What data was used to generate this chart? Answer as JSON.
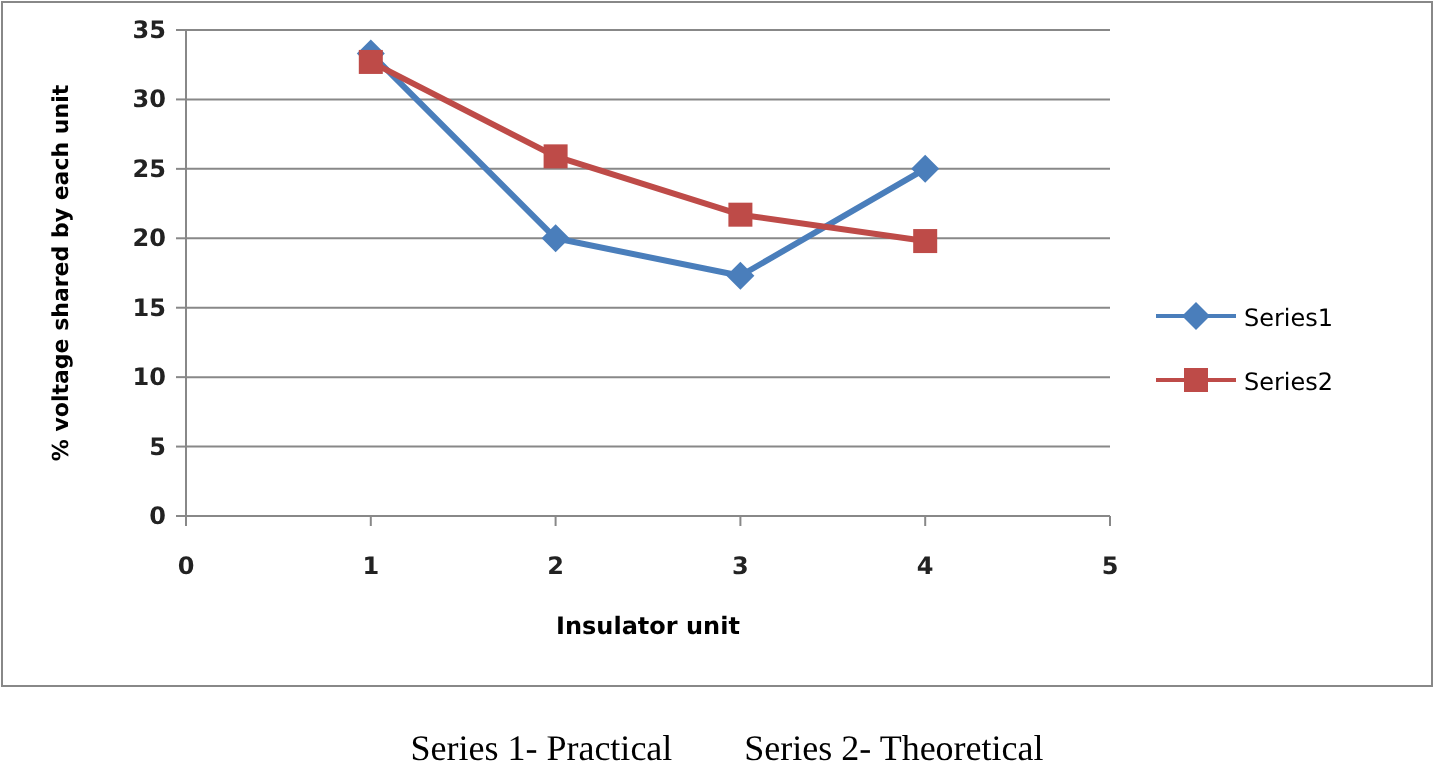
{
  "chart_data": {
    "type": "line",
    "xlabel": "Insulator unit",
    "ylabel": "% voltage shared by each unit",
    "x": [
      1,
      2,
      3,
      4
    ],
    "series": [
      {
        "name": "Series1",
        "color": "#4a7ebb",
        "marker": "diamond",
        "values": [
          33.3,
          20.0,
          17.3,
          25.0
        ]
      },
      {
        "name": "Series2",
        "color": "#be4b48",
        "marker": "square",
        "values": [
          32.7,
          25.9,
          21.7,
          19.8
        ]
      }
    ],
    "xlim": [
      0,
      5
    ],
    "xticks": [
      0,
      1,
      2,
      3,
      4,
      5
    ],
    "ylim": [
      0,
      35
    ],
    "yticks": [
      0,
      5,
      10,
      15,
      20,
      25,
      30,
      35
    ],
    "grid": "y",
    "legend": "right",
    "line_style": "solid",
    "annotations": [
      "Series 1- Practical        Series 2- Theoretical"
    ]
  }
}
